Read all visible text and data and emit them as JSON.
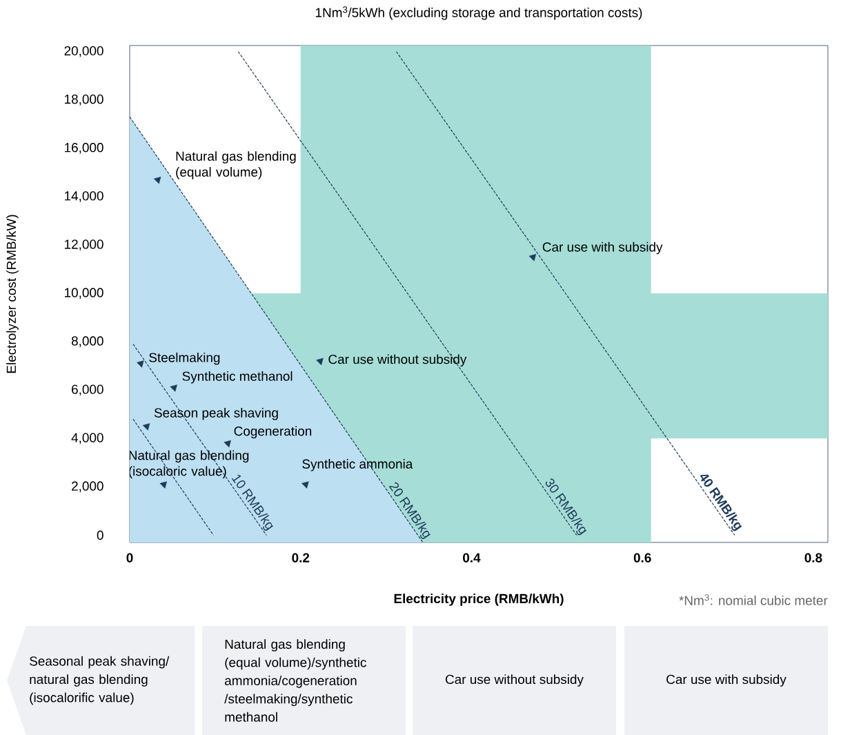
{
  "chart_data": {
    "type": "scatter",
    "title": "1Nm$^{3}$/5kWh (excluding storage and transportation costs)",
    "xlabel": "Electricity price (RMB/kWh)",
    "ylabel": "Electrolyzer cost (RMB/kW)",
    "xlim": [
      0,
      0.817
    ],
    "ylim": [
      -300,
      20250
    ],
    "xticks": [
      0,
      0.2,
      0.4,
      0.6,
      0.8
    ],
    "yticks": [
      0,
      {
        "value": 2000,
        "label": "2,000"
      },
      {
        "value": 4000,
        "label": "4,000"
      },
      {
        "value": 6000,
        "label": "6,000"
      },
      {
        "value": 8000,
        "label": "8,000"
      },
      {
        "value": 10000,
        "label": "10,000"
      },
      {
        "value": 12000,
        "label": "12,000"
      },
      {
        "value": 14000,
        "label": "14,000"
      },
      {
        "value": 16000,
        "label": "16,000"
      },
      {
        "value": 18000,
        "label": "18,000"
      },
      {
        "value": 20000,
        "label": "20,000"
      }
    ],
    "line_style": "dashed",
    "bands": [
      {
        "axis": "x",
        "from": 0.2,
        "to": 0.61,
        "color": "#a6ddd7"
      },
      {
        "axis": "y",
        "from": 4000,
        "to": 10000,
        "color": "#a6ddd7"
      }
    ],
    "series": [
      {
        "type": "area",
        "name": "20 RMB/kg",
        "color": "#bcdff2",
        "line_style": "dashed",
        "x": [
          0,
          0.343
        ],
        "values": [
          17300,
          -300
        ]
      },
      {
        "type": "line",
        "color": "#1f3b5a",
        "x": [
          0.004,
          0.098
        ],
        "values": [
          4800,
          0
        ]
      },
      {
        "type": "line",
        "name": "10 RMB/kg",
        "color": "#1f3b5a",
        "x": [
          0.004,
          0.16
        ],
        "values": [
          7900,
          0
        ]
      },
      {
        "type": "line",
        "name": "30 RMB/kg",
        "color": "#1f3b5a",
        "x": [
          0.127,
          0.523
        ],
        "values": [
          20000,
          0
        ]
      },
      {
        "type": "line",
        "name": "40 RMB/kg",
        "color": "#1f3b5a",
        "x": [
          0.312,
          0.708
        ],
        "values": [
          20000,
          0
        ]
      },
      {
        "marker": "triangle",
        "color": "#1f3b5a",
        "x": [
          0.033,
          0.472,
          0.013,
          0.052,
          0.223,
          0.02,
          0.115,
          0.206,
          0.04
        ],
        "values": [
          14700,
          11500,
          7100,
          6100,
          7200,
          4500,
          3800,
          2100,
          2100
        ]
      }
    ],
    "annotations": [
      {
        "text": "Natural gas blending (equal volume)",
        "x": 0.033,
        "y": 14700
      },
      {
        "text": "Car use with subsidy",
        "x": 0.472,
        "y": 11500
      },
      {
        "text": "Steelmaking",
        "x": 0.013,
        "y": 7100
      },
      {
        "text": "Synthetic methanol",
        "x": 0.052,
        "y": 6100
      },
      {
        "text": "Car use without subsidy",
        "x": 0.223,
        "y": 7200
      },
      {
        "text": "Season peak shaving",
        "x": 0.02,
        "y": 4500
      },
      {
        "text": "Cogeneration",
        "x": 0.115,
        "y": 3800
      },
      {
        "text": "Synthetic ammonia",
        "x": 0.206,
        "y": 2100
      },
      {
        "text": "Natural gas blending (isocaloric value)",
        "x": 0.04,
        "y": 2100
      },
      "*Nm$^{3}$: nomial cubic meter",
      "Seasonal peak shaving/ natural gas blending (isocalorific value)",
      "Natural gas blending (equal volume)/synthetic ammonia/cogeneration /steelmaking/synthetic methanol",
      "Car use without subsidy",
      "Car use with subsidy"
    ]
  }
}
